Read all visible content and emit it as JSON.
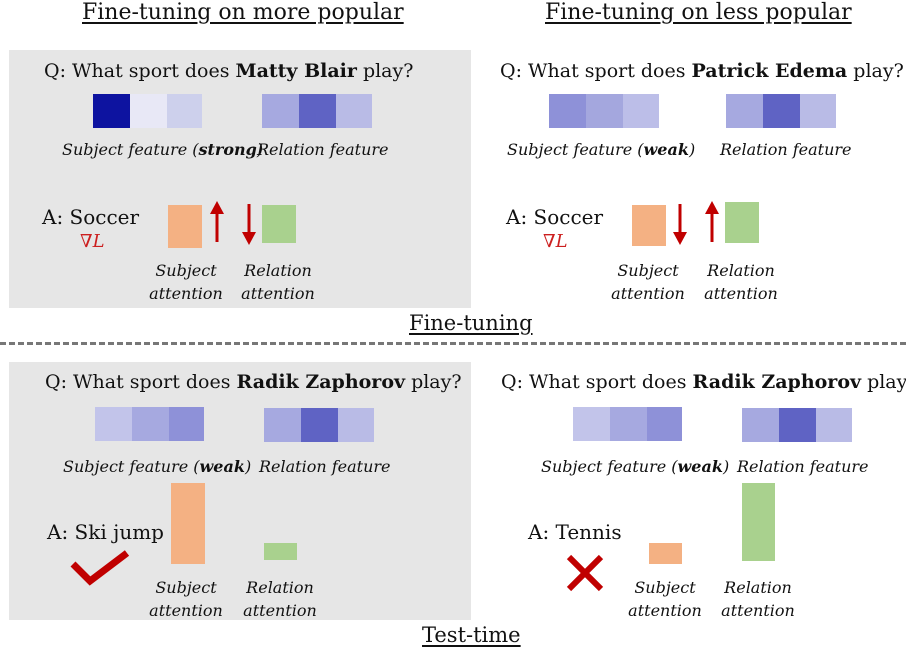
{
  "headings": {
    "popular": "Fine-tuning on more popular",
    "less_popular": "Fine-tuning on less popular"
  },
  "stage_labels": {
    "fine_tuning": "Fine-tuning",
    "test_time": "Test-time"
  },
  "common": {
    "question_prefix": "Q: What sport does ",
    "question_suffix": " play?",
    "subject_feature_prefix": "Subject feature (",
    "subject_feature_suffix": ")",
    "relation_feature": "Relation feature",
    "subject_attention": "Subject attention",
    "relation_attention": "Relation attention",
    "gradient": "∇L"
  },
  "panels": {
    "top_left": {
      "entity": "Matty Blair",
      "strength": "strong",
      "answer": "A: Soccer",
      "subject_cells": [
        "#0d13a0",
        "#e8e8f6",
        "#cdd0ec"
      ],
      "relation_cells": [
        "#a6a9e0",
        "#5f63c4",
        "#b9bbe6"
      ],
      "subject_attention_arrow": "up-arrow-icon",
      "relation_attention_arrow": "down-arrow-icon"
    },
    "top_right": {
      "entity": "Patrick Edema",
      "strength": "weak",
      "answer": "A: Soccer",
      "subject_cells": [
        "#8e91d8",
        "#a4a7de",
        "#bcbee8"
      ],
      "relation_cells": [
        "#a6a9e0",
        "#5f63c4",
        "#b9bbe6"
      ],
      "subject_attention_arrow": "down-arrow-icon",
      "relation_attention_arrow": "up-arrow-icon"
    },
    "bottom_left": {
      "entity": "Radik Zaphorov",
      "strength": "weak",
      "answer": "A: Ski jump",
      "subject_cells": [
        "#c2c4ea",
        "#a6a9e0",
        "#8e91d8"
      ],
      "relation_cells": [
        "#a6a9e0",
        "#5f63c4",
        "#b9bbe6"
      ],
      "result": "check-icon"
    },
    "bottom_right": {
      "entity": "Radik Zaphorov",
      "strength": "weak",
      "answer": "A: Tennis",
      "subject_cells": [
        "#c2c4ea",
        "#a6a9e0",
        "#8e91d8"
      ],
      "relation_cells": [
        "#a6a9e0",
        "#5f63c4",
        "#b9bbe6"
      ],
      "result": "cross-icon"
    }
  },
  "colors": {
    "panel_bg": "#e6e6e6",
    "subject_attention": "#f4b183",
    "relation_attention": "#a9d18e",
    "arrow": "#c00000",
    "check": "#c00000"
  }
}
